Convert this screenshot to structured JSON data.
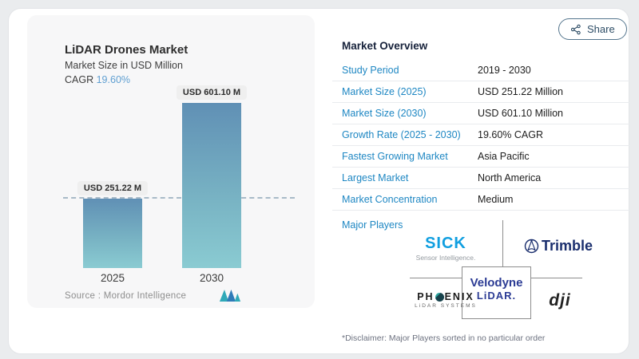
{
  "share": {
    "label": "Share"
  },
  "chart": {
    "title": "LiDAR Drones Market",
    "subtitle": "Market Size in USD Million",
    "cagr_label": "CAGR",
    "cagr_value": "19.60%",
    "source_label": "Source :",
    "source_value": "Mordor Intelligence"
  },
  "chart_data": {
    "type": "bar",
    "categories": [
      "2025",
      "2030"
    ],
    "values": [
      251.22,
      601.1
    ],
    "bar_labels": [
      "USD 251.22 M",
      "USD 601.10 M"
    ],
    "title": "LiDAR Drones Market",
    "ylabel": "Market Size in USD Million",
    "cagr": "19.60%",
    "reference_line": 251.22,
    "legend_position": "none",
    "grid": false,
    "source": "Mordor Intelligence",
    "bar_color_top": "#6090b5",
    "bar_color_bottom": "#8acbd2",
    "accent_color": "#5f9fd1"
  },
  "overview": {
    "title": "Market Overview",
    "rows": [
      {
        "label": "Study Period",
        "value": "2019 - 2030"
      },
      {
        "label": "Market Size (2025)",
        "value": "USD 251.22 Million"
      },
      {
        "label": "Market Size (2030)",
        "value": "USD 601.10 Million"
      },
      {
        "label": "Growth Rate (2025 - 2030)",
        "value": "19.60% CAGR"
      },
      {
        "label": "Fastest Growing Market",
        "value": "Asia Pacific"
      },
      {
        "label": "Largest Market",
        "value": "North America"
      },
      {
        "label": "Market Concentration",
        "value": "Medium"
      }
    ],
    "major_players_label": "Major Players",
    "disclaimer": "*Disclaimer: Major Players sorted in no particular order",
    "label_color": "#1e87c3"
  },
  "logos": {
    "sick": {
      "name": "SICK",
      "tagline": "Sensor Intelligence.",
      "color": "#119fe0"
    },
    "trimble": {
      "name": "Trimble",
      "color": "#1b2f6e"
    },
    "phoenix": {
      "pre": "PH",
      "post": "ENIX",
      "tagline": "LiDAR SYSTEMS"
    },
    "velodyne": {
      "line1": "Velodyne",
      "line2": "LiDAR.",
      "color": "#2b3b94"
    },
    "dji": {
      "name": "dji"
    }
  }
}
